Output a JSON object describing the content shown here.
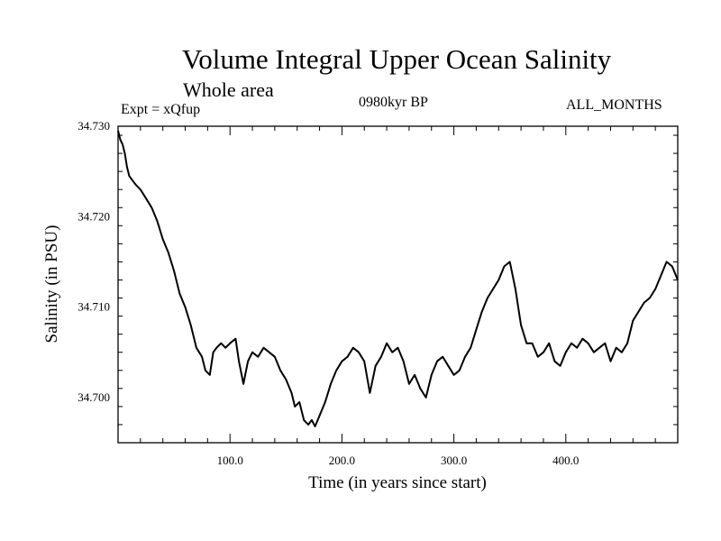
{
  "chart_data": {
    "type": "line",
    "title": "Volume Integral Upper Ocean Salinity",
    "subtitle": "Whole area",
    "experiment": "Expt = xQfup",
    "period": "0980kyr BP",
    "months": "ALL_MONTHS",
    "xlabel": "Time (in years since start)",
    "ylabel": "Salinity (in PSU)",
    "xlim": [
      0,
      500
    ],
    "ylim": [
      34.695,
      34.73
    ],
    "xticks": [
      100,
      200,
      300,
      400
    ],
    "xtick_labels": [
      "100.0",
      "200.0",
      "300.0",
      "400.0"
    ],
    "yticks": [
      34.7,
      34.71,
      34.72,
      34.73
    ],
    "ytick_labels": [
      "34.700",
      "34.710",
      "34.720",
      "34.730"
    ],
    "line_color": "#000000",
    "series": [
      {
        "name": "salinity",
        "x": [
          0,
          2,
          4,
          6,
          8,
          10,
          13,
          16,
          20,
          25,
          30,
          35,
          40,
          45,
          50,
          55,
          60,
          65,
          70,
          75,
          78,
          82,
          85,
          88,
          92,
          96,
          100,
          105,
          108,
          112,
          116,
          120,
          125,
          130,
          135,
          140,
          145,
          150,
          155,
          158,
          162,
          166,
          170,
          173,
          176,
          180,
          185,
          190,
          195,
          200,
          205,
          210,
          215,
          220,
          225,
          230,
          235,
          240,
          245,
          250,
          255,
          260,
          265,
          270,
          275,
          280,
          285,
          290,
          295,
          300,
          305,
          310,
          315,
          320,
          325,
          330,
          335,
          340,
          345,
          350,
          355,
          360,
          365,
          370,
          375,
          380,
          385,
          390,
          395,
          400,
          405,
          410,
          415,
          420,
          425,
          430,
          435,
          440,
          445,
          450,
          455,
          460,
          465,
          470,
          475,
          480,
          485,
          490,
          495,
          500
        ],
        "values": [
          34.7295,
          34.7285,
          34.728,
          34.727,
          34.7255,
          34.7245,
          34.724,
          34.7235,
          34.723,
          34.722,
          34.721,
          34.7195,
          34.7175,
          34.716,
          34.714,
          34.7115,
          34.71,
          34.708,
          34.7055,
          34.7045,
          34.703,
          34.7025,
          34.705,
          34.7055,
          34.706,
          34.7055,
          34.706,
          34.7065,
          34.704,
          34.7015,
          34.704,
          34.705,
          34.7045,
          34.7055,
          34.705,
          34.7045,
          34.703,
          34.702,
          34.7005,
          34.699,
          34.6995,
          34.6975,
          34.697,
          34.6975,
          34.6968,
          34.698,
          34.6995,
          34.7015,
          34.703,
          34.704,
          34.7045,
          34.7055,
          34.705,
          34.704,
          34.7005,
          34.7035,
          34.7045,
          34.706,
          34.705,
          34.7055,
          34.704,
          34.7015,
          34.7025,
          34.701,
          34.7,
          34.7025,
          34.704,
          34.7045,
          34.7035,
          34.7025,
          34.703,
          34.7045,
          34.7055,
          34.7075,
          34.7095,
          34.711,
          34.712,
          34.713,
          34.7145,
          34.715,
          34.712,
          34.708,
          34.706,
          34.706,
          34.7045,
          34.705,
          34.706,
          34.704,
          34.7035,
          34.705,
          34.706,
          34.7055,
          34.7065,
          34.706,
          34.705,
          34.7055,
          34.706,
          34.704,
          34.7055,
          34.705,
          34.706,
          34.7085,
          34.7095,
          34.7105,
          34.711,
          34.712,
          34.7135,
          34.715,
          34.7145,
          34.713
        ]
      }
    ]
  }
}
